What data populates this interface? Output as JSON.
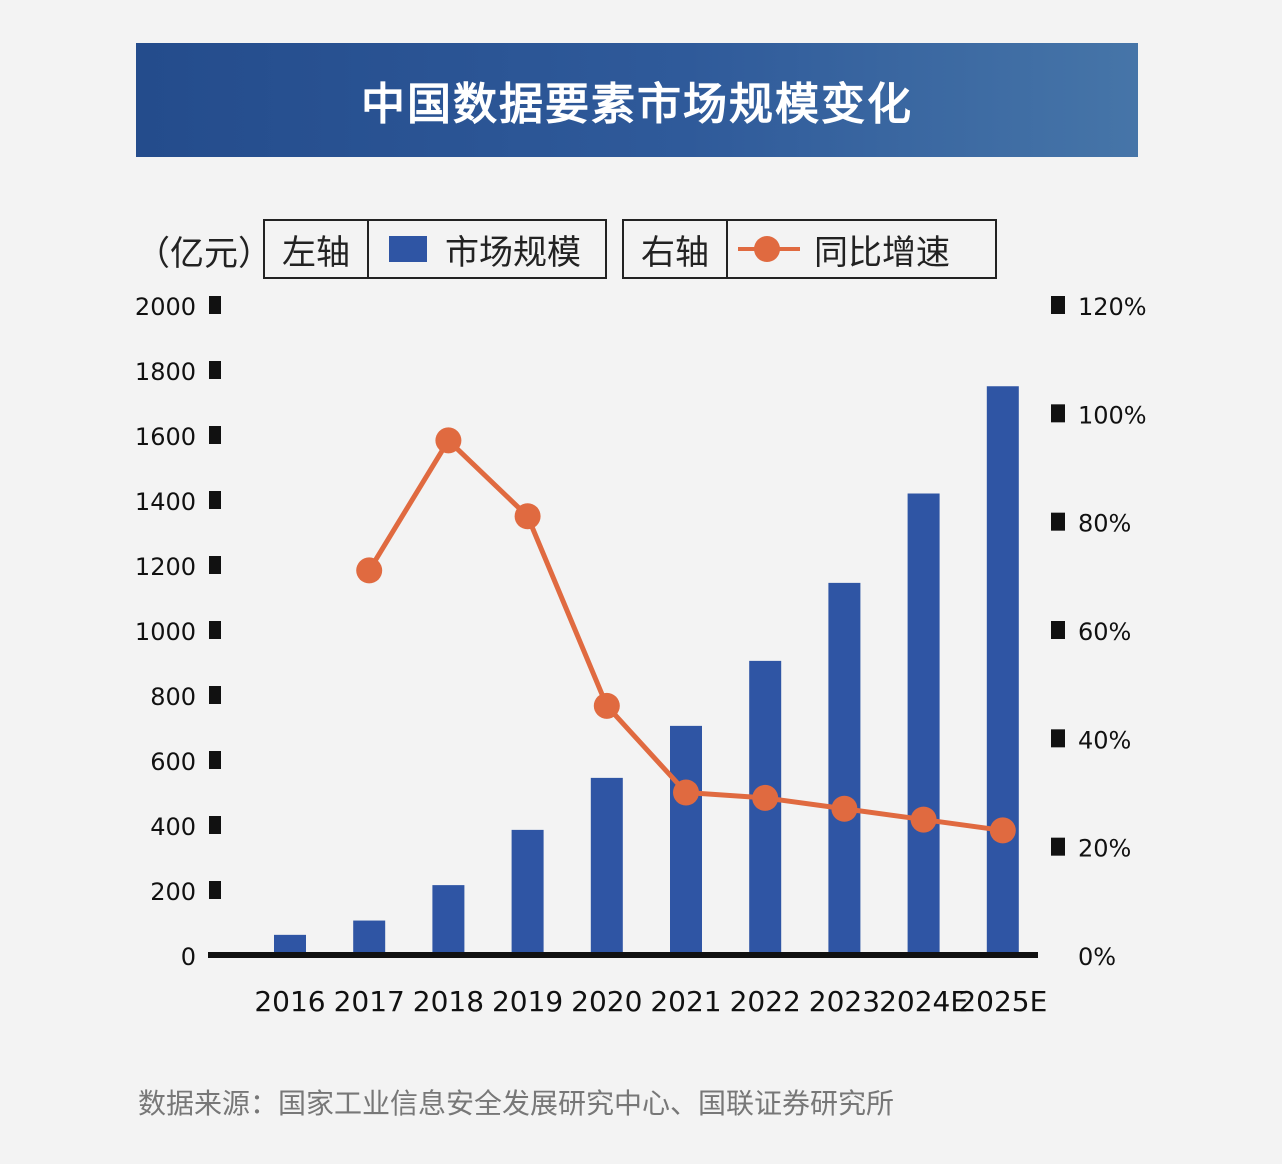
{
  "title": "中国数据要素市场规模变化",
  "legend": {
    "unit": "（亿元）",
    "left_axis_label": "左轴",
    "bar_series_label": "市场规模",
    "right_axis_label": "右轴",
    "line_series_label": "同比增速"
  },
  "source": "数据来源：国家工业信息安全发展研究中心、国联证券研究所",
  "colors": {
    "bar": "#2f55a4",
    "line": "#e06a40",
    "axis": "#111111",
    "banner": "#2f5a9a"
  },
  "chart_data": {
    "type": "bar+line",
    "title": "中国数据要素市场规模变化",
    "categories": [
      "2016",
      "2017",
      "2018",
      "2019",
      "2020",
      "2021",
      "2022",
      "2023",
      "2024E",
      "2025E"
    ],
    "series": [
      {
        "name": "市场规模",
        "type": "bar",
        "axis": "left",
        "values": [
          62,
          106,
          215,
          385,
          545,
          705,
          905,
          1145,
          1420,
          1750
        ]
      },
      {
        "name": "同比增速",
        "type": "line",
        "axis": "right",
        "values": [
          null,
          71,
          95,
          81,
          46,
          30,
          29,
          27,
          25,
          23
        ]
      }
    ],
    "left_axis": {
      "label": "（亿元）",
      "ylim": [
        0,
        2000
      ],
      "ticks": [
        "0",
        "200",
        "400",
        "600",
        "800",
        "1000",
        "1200",
        "1400",
        "1600",
        "1800",
        "2000"
      ]
    },
    "right_axis": {
      "ylim": [
        0,
        120
      ],
      "unit": "%",
      "ticks": [
        "0%",
        "20%",
        "40%",
        "60%",
        "80%",
        "100%",
        "120%"
      ]
    },
    "grid": false
  }
}
